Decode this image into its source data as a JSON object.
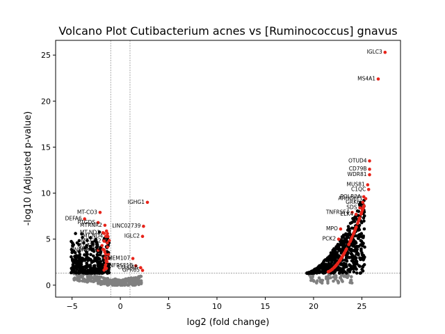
{
  "chart_data": {
    "type": "scatter",
    "title": "Volcano Plot Cutibacterium acnes vs [Ruminococcus] gnavus",
    "xlabel": "log2 (fold change)",
    "ylabel": "-log10 (Adjusted p-value)",
    "xlim": [
      -6.7,
      29.0
    ],
    "ylim": [
      -1.3,
      26.6
    ],
    "x_ticks": [
      -5,
      0,
      5,
      10,
      15,
      20,
      25
    ],
    "y_ticks": [
      0,
      5,
      10,
      15,
      20,
      25
    ],
    "grid": false,
    "thresholds": {
      "log2fc": [
        -1,
        1
      ],
      "neg_log10_p": 1.3
    },
    "colors": {
      "significant": "#e8241a",
      "not_significant": "#808080",
      "threshold_line": "#808080"
    },
    "significant_labeled": [
      {
        "label": "IGLC3",
        "x": 27.4,
        "y": 25.3
      },
      {
        "label": "MS4A1",
        "x": 26.7,
        "y": 22.4
      },
      {
        "label": "OTUD4",
        "x": 25.8,
        "y": 13.5
      },
      {
        "label": "CD79B",
        "x": 25.8,
        "y": 12.6
      },
      {
        "label": "WDR81",
        "x": 25.8,
        "y": 12.0
      },
      {
        "label": "MUS81",
        "x": 25.6,
        "y": 10.9
      },
      {
        "label": "C1QC",
        "x": 25.7,
        "y": 10.4
      },
      {
        "label": "POLR2A",
        "x": 25.2,
        "y": 9.6
      },
      {
        "label": "ARHGEF1",
        "x": 25.4,
        "y": 9.4
      },
      {
        "label": "GRK6",
        "x": 25.1,
        "y": 9.0
      },
      {
        "label": "SDS",
        "x": 24.8,
        "y": 8.4
      },
      {
        "label": "TNFRSF4",
        "x": 24.0,
        "y": 7.9
      },
      {
        "label": "ELK4",
        "x": 24.4,
        "y": 7.7
      },
      {
        "label": "MPO",
        "x": 22.8,
        "y": 6.1
      },
      {
        "label": "PCK2",
        "x": 22.6,
        "y": 5.0
      },
      {
        "label": "IGHG1",
        "x": 2.8,
        "y": 9.0
      },
      {
        "label": "LINC02739",
        "x": 2.4,
        "y": 6.4
      },
      {
        "label": "IGLC2",
        "x": 2.3,
        "y": 5.3
      },
      {
        "label": "MT-CO3",
        "x": -2.1,
        "y": 7.9
      },
      {
        "label": "DEFA6",
        "x": -3.7,
        "y": 7.2
      },
      {
        "label": "PTGDS",
        "x": -2.3,
        "y": 6.8
      },
      {
        "label": "MTRNR2",
        "x": -1.6,
        "y": 6.5
      },
      {
        "label": "MT-ND1",
        "x": -1.8,
        "y": 5.7
      },
      {
        "label": "MT-ND4",
        "x": -1.5,
        "y": 5.3
      },
      {
        "label": "MT-CO2",
        "x": -1.7,
        "y": 4.8
      },
      {
        "label": "MT-ATP6",
        "x": -1.9,
        "y": 4.3
      },
      {
        "label": "NDUFA4",
        "x": -1.8,
        "y": 3.9
      },
      {
        "label": "HNRNPA1",
        "x": -2.3,
        "y": 3.8
      },
      {
        "label": "TMEM107",
        "x": 1.3,
        "y": 2.9
      },
      {
        "label": "TNFRSF1B",
        "x": 1.6,
        "y": 2.1
      },
      {
        "label": "CLEC4B",
        "x": 2.1,
        "y": 1.9
      },
      {
        "label": "GPR65",
        "x": 2.3,
        "y": 1.6
      }
    ]
  }
}
